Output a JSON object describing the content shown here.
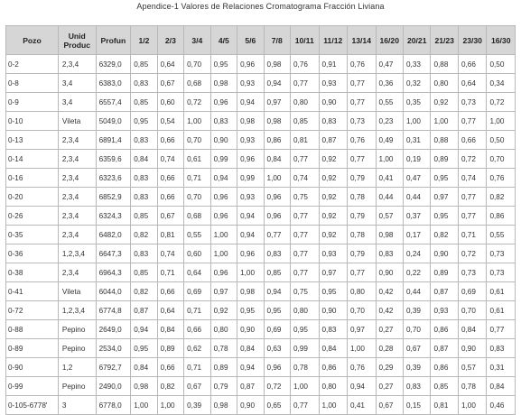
{
  "caption": "Apendice-1  Valores de Relaciones Cromatograma Fracción Liviana",
  "table": {
    "headers": [
      "Pozo",
      "Unid Produc",
      "Profun",
      "1/2",
      "2/3",
      "3/4",
      "4/5",
      "5/6",
      "7/8",
      "10/11",
      "11/12",
      "13/14",
      "16/20",
      "20/21",
      "21/23",
      "23/30",
      "16/30"
    ],
    "rows": [
      [
        "0-2",
        "2,3,4",
        "6329,0",
        "0,85",
        "0,64",
        "0,70",
        "0,95",
        "0,96",
        "0,98",
        "0,76",
        "0,91",
        "0,76",
        "0,47",
        "0,33",
        "0,88",
        "0,66",
        "0,50"
      ],
      [
        "0-8",
        "3,4",
        "6383,0",
        "0,83",
        "0,67",
        "0,68",
        "0,98",
        "0,93",
        "0,94",
        "0,77",
        "0,93",
        "0,77",
        "0,36",
        "0,32",
        "0,80",
        "0,64",
        "0,34"
      ],
      [
        "0-9",
        "3,4",
        "6557,4",
        "0,85",
        "0,60",
        "0,72",
        "0,96",
        "0,94",
        "0,97",
        "0,80",
        "0,90",
        "0,77",
        "0,55",
        "0,35",
        "0,92",
        "0,73",
        "0,72"
      ],
      [
        "0-10",
        "Vileta",
        "5049,0",
        "0,95",
        "0,54",
        "1,00",
        "0,83",
        "0,98",
        "0,98",
        "0,85",
        "0,83",
        "0,73",
        "0,23",
        "1,00",
        "1,00",
        "0,77",
        "1,00"
      ],
      [
        "0-13",
        "2,3,4",
        "6891,4",
        "0,83",
        "0,66",
        "0,70",
        "0,90",
        "0,93",
        "0,86",
        "0,81",
        "0,87",
        "0,76",
        "0,49",
        "0,31",
        "0,88",
        "0,66",
        "0,50"
      ],
      [
        "0-14",
        "2,3,4",
        "6359,6",
        "0,84",
        "0,74",
        "0,61",
        "0,99",
        "0,96",
        "0,84",
        "0,77",
        "0,92",
        "0,77",
        "1,00",
        "0,19",
        "0,89",
        "0,72",
        "0,70"
      ],
      [
        "0-16",
        "2,3,4",
        "6323,6",
        "0,83",
        "0,66",
        "0,71",
        "0,94",
        "0,99",
        "1,00",
        "0,74",
        "0,92",
        "0,79",
        "0,41",
        "0,47",
        "0,95",
        "0,74",
        "0,76"
      ],
      [
        "0-20",
        "2,3,4",
        "6852,9",
        "0,83",
        "0,66",
        "0,70",
        "0,96",
        "0,93",
        "0,96",
        "0,75",
        "0,92",
        "0,78",
        "0,44",
        "0,44",
        "0,97",
        "0,77",
        "0,82"
      ],
      [
        "0-26",
        "2,3,4",
        "6324,3",
        "0,85",
        "0,67",
        "0,68",
        "0,96",
        "0,94",
        "0,96",
        "0,77",
        "0,92",
        "0,79",
        "0,57",
        "0,37",
        "0,95",
        "0,77",
        "0,86"
      ],
      [
        "0-35",
        "2,3,4",
        "6482,0",
        "0,82",
        "0,81",
        "0,55",
        "1,00",
        "0,94",
        "0,77",
        "0,77",
        "0,92",
        "0,78",
        "0,98",
        "0,17",
        "0,82",
        "0,71",
        "0,55"
      ],
      [
        "0-36",
        "1,2,3,4",
        "6647,3",
        "0,83",
        "0,74",
        "0,60",
        "1,00",
        "0,96",
        "0,83",
        "0,77",
        "0,93",
        "0,79",
        "0,83",
        "0,24",
        "0,90",
        "0,72",
        "0,73"
      ],
      [
        "0-38",
        "2,3,4",
        "6964,3",
        "0,85",
        "0,71",
        "0,64",
        "0,96",
        "1,00",
        "0,85",
        "0,77",
        "0,97",
        "0,77",
        "0,90",
        "0,22",
        "0,89",
        "0,73",
        "0,73"
      ],
      [
        "0-41",
        "Vileta",
        "6044,0",
        "0,82",
        "0,66",
        "0,69",
        "0,97",
        "0,98",
        "0,94",
        "0,75",
        "0,95",
        "0,80",
        "0,42",
        "0,44",
        "0,87",
        "0,69",
        "0,61"
      ],
      [
        "0-72",
        "1,2,3,4",
        "6774,8",
        "0,87",
        "0,64",
        "0,71",
        "0,92",
        "0,95",
        "0,95",
        "0,80",
        "0,90",
        "0,70",
        "0,42",
        "0,39",
        "0,93",
        "0,70",
        "0,61"
      ],
      [
        "0-88",
        "Pepino",
        "2649,0",
        "0,94",
        "0,84",
        "0,66",
        "0,80",
        "0,90",
        "0,69",
        "0,95",
        "0,83",
        "0,97",
        "0,27",
        "0,70",
        "0,86",
        "0,84",
        "0,77"
      ],
      [
        "0-89",
        "Pepino",
        "2534,0",
        "0,95",
        "0,89",
        "0,62",
        "0,78",
        "0,84",
        "0,63",
        "0,99",
        "0,84",
        "1,00",
        "0,28",
        "0,67",
        "0,87",
        "0,90",
        "0,83"
      ],
      [
        "0-90",
        "1,2",
        "6792,7",
        "0,84",
        "0,66",
        "0,71",
        "0,89",
        "0,94",
        "0,96",
        "0,78",
        "0,86",
        "0,76",
        "0,29",
        "0,39",
        "0,86",
        "0,57",
        "0,31"
      ],
      [
        "0-99",
        "Pepino",
        "2490,0",
        "0,98",
        "0,82",
        "0,67",
        "0,79",
        "0,87",
        "0,72",
        "1,00",
        "0,80",
        "0,94",
        "0,27",
        "0,83",
        "0,85",
        "0,78",
        "0,84"
      ],
      [
        "0-105-6778'",
        "3",
        "6778,0",
        "1,00",
        "1,00",
        "0,39",
        "0,98",
        "0,90",
        "0,65",
        "0,77",
        "1,00",
        "0,41",
        "0,67",
        "0,15",
        "0,81",
        "1,00",
        "0,46"
      ]
    ]
  }
}
